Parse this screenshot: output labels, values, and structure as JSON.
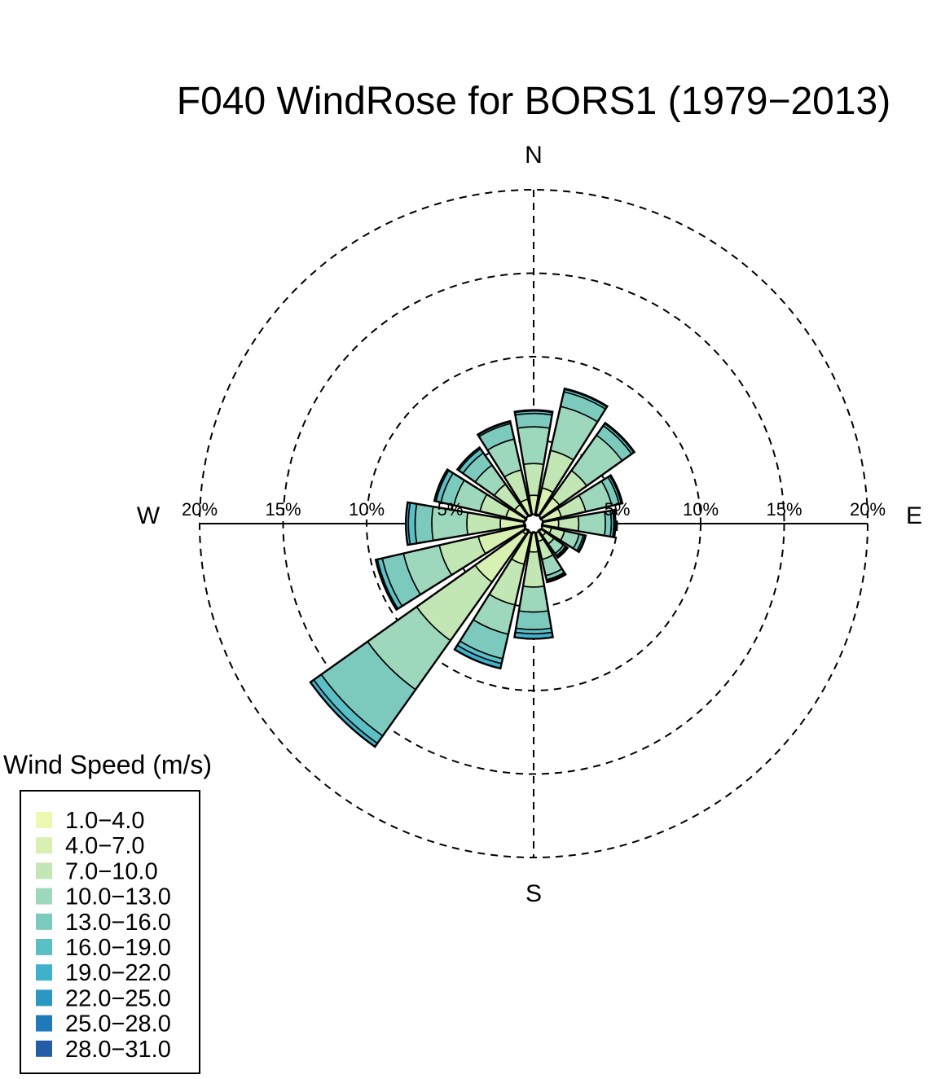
{
  "chart_data": {
    "type": "windrose",
    "title": "F040 WindRose for BORS1 (1979−2013)",
    "directions": [
      "N",
      "NNE",
      "NE",
      "ENE",
      "E",
      "ESE",
      "SE",
      "SSE",
      "S",
      "SSW",
      "SW",
      "WSW",
      "W",
      "WNW",
      "NW",
      "NNW"
    ],
    "compass_labels": {
      "north": "N",
      "east": "E",
      "south": "S",
      "west": "W"
    },
    "radial_axis": {
      "unit": "%",
      "max": 20,
      "rings": [
        5,
        10,
        15,
        20
      ],
      "ring_labels": [
        "5%",
        "10%",
        "15%",
        "20%"
      ]
    },
    "legend": {
      "title": "Wind Speed (m/s)",
      "bins": [
        {
          "label": "1.0−4.0",
          "color": "#edf8b1"
        },
        {
          "label": "4.0−7.0",
          "color": "#d9f0b3"
        },
        {
          "label": "7.0−10.0",
          "color": "#c2e6b4"
        },
        {
          "label": "10.0−13.0",
          "color": "#9dd7bc"
        },
        {
          "label": "13.0−16.0",
          "color": "#7ccabe"
        },
        {
          "label": "16.0−19.0",
          "color": "#5ac0c6"
        },
        {
          "label": "19.0−22.0",
          "color": "#41b1cb"
        },
        {
          "label": "22.0−25.0",
          "color": "#2b98c4"
        },
        {
          "label": "25.0−28.0",
          "color": "#1f7ab8"
        },
        {
          "label": "28.0−31.0",
          "color": "#225ea8"
        }
      ]
    },
    "series_cumulative_percent": [
      [
        0.4,
        1.7,
        3.6,
        5.8,
        6.6,
        6.75,
        6.8
      ],
      [
        0.6,
        2.2,
        4.5,
        7.2,
        8.1,
        8.25,
        8.3
      ],
      [
        0.5,
        1.9,
        3.9,
        6.5,
        7.2,
        7.35,
        7.4
      ],
      [
        0.5,
        1.7,
        3.2,
        4.8,
        5.25,
        5.38,
        5.45
      ],
      [
        0.5,
        1.5,
        2.7,
        4.3,
        4.65,
        4.8,
        4.9
      ],
      [
        0.4,
        1.1,
        1.9,
        2.8,
        3.05,
        3.15,
        3.2
      ],
      [
        0.3,
        0.9,
        1.5,
        2.2,
        2.35,
        2.42,
        2.5
      ],
      [
        0.4,
        1.1,
        2.2,
        3.2,
        3.45,
        3.52,
        3.6
      ],
      [
        0.5,
        1.7,
        3.8,
        5.3,
        6.35,
        6.6,
        6.9
      ],
      [
        0.6,
        2.5,
        5.0,
        6.8,
        8.3,
        8.6,
        8.9
      ],
      [
        0.8,
        4.3,
        8.6,
        12.2,
        15.6,
        16.15,
        16.4
      ],
      [
        0.6,
        3.4,
        5.8,
        8.0,
        9.3,
        9.6,
        9.7
      ],
      [
        0.6,
        2.0,
        4.0,
        6.1,
        7.1,
        7.5,
        7.65
      ],
      [
        0.4,
        1.7,
        3.3,
        4.9,
        5.7,
        6.0,
        6.1
      ],
      [
        0.4,
        1.4,
        2.9,
        4.3,
        5.2,
        5.5,
        5.6
      ],
      [
        0.4,
        1.5,
        3.3,
        5.2,
        6.15,
        6.25,
        6.3
      ]
    ]
  }
}
